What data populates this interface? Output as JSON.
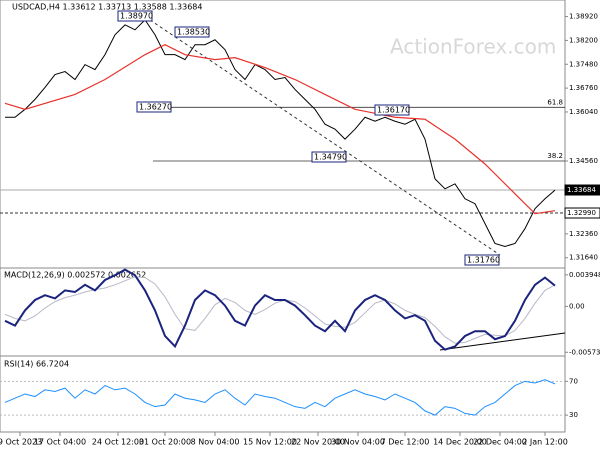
{
  "chart_data": {
    "type": "line",
    "title": "USDCAD,H4  1.33612 1.33713 1.33588 1.33684",
    "watermark": "ActionForex.com",
    "xlim": [
      -0.5,
      56
    ],
    "xticks": [
      {
        "value": 1.5,
        "label": "9 Oct 2023"
      },
      {
        "value": 5.5,
        "label": "17 Oct 04:00"
      },
      {
        "value": 11.3,
        "label": "24 Oct 12:00"
      },
      {
        "value": 16,
        "label": "31 Oct 20:00"
      },
      {
        "value": 21,
        "label": "8 Nov 04:00"
      },
      {
        "value": 26.5,
        "label": "15 Nov 12:00"
      },
      {
        "value": 31.3,
        "label": "22 Nov 20:00"
      },
      {
        "value": 35.3,
        "label": "30 Nov 04:00"
      },
      {
        "value": 40,
        "label": "7 Dec 12:00"
      },
      {
        "value": 45.5,
        "label": "14 Dec 20:00"
      },
      {
        "value": 49.5,
        "label": "22 Dec 04:00"
      },
      {
        "value": 54,
        "label": "2 Jan 12:00"
      }
    ],
    "ylim": [
      1.3133,
      1.3942
    ],
    "yticks": [
      {
        "value": 1.3892,
        "label": "1.38920"
      },
      {
        "value": 1.382,
        "label": "1.38200"
      },
      {
        "value": 1.3748,
        "label": "1.37480"
      },
      {
        "value": 1.3676,
        "label": "1.36760"
      },
      {
        "value": 1.3604,
        "label": "1.36040"
      },
      {
        "value": 1.3456,
        "label": "1.34560"
      },
      {
        "value": 1.3236,
        "label": "1.32360"
      },
      {
        "value": 1.3164,
        "label": "1.31640"
      }
    ],
    "series": [
      {
        "name": "USDCAD",
        "color": "#000000",
        "values": [
          1.3588,
          1.3588,
          1.3612,
          1.3642,
          1.3678,
          1.3717,
          1.3726,
          1.3702,
          1.3747,
          1.3732,
          1.3777,
          1.3837,
          1.3867,
          1.3852,
          1.3882,
          1.3837,
          1.3777,
          1.3777,
          1.3762,
          1.3807,
          1.3807,
          1.3822,
          1.3792,
          1.3732,
          1.3702,
          1.3747,
          1.3732,
          1.3702,
          1.3708,
          1.3672,
          1.3642,
          1.3612,
          1.3567,
          1.3552,
          1.3522,
          1.3552,
          1.3588,
          1.3576,
          1.3588,
          1.3576,
          1.3567,
          1.3582,
          1.3522,
          1.3402,
          1.3372,
          1.3387,
          1.3342,
          1.3327,
          1.3267,
          1.3207,
          1.3198,
          1.3207,
          1.3252,
          1.3312,
          1.3342,
          1.3368
        ]
      },
      {
        "name": "MA",
        "color": "#e8322c",
        "x": [
          0,
          2,
          7,
          10,
          14,
          16,
          18,
          21,
          23,
          26,
          29,
          32,
          35,
          39,
          42,
          45,
          48,
          51,
          53,
          55
        ],
        "values": [
          1.363,
          1.3612,
          1.3657,
          1.3702,
          1.3777,
          1.3807,
          1.3777,
          1.3762,
          1.3768,
          1.3738,
          1.3702,
          1.3657,
          1.3612,
          1.3588,
          1.3582,
          1.3522,
          1.3447,
          1.3357,
          1.3297,
          1.3306
        ]
      }
    ],
    "price_lines": [
      {
        "value": 1.33684,
        "label": "1.33684"
      },
      {
        "value": 1.3299,
        "label": "1.32990"
      }
    ],
    "fib_levels": [
      {
        "ratio": 61.8,
        "price": 1.3618
      },
      {
        "ratio": 38.2,
        "price": 1.3456
      }
    ],
    "annotations": [
      "1.38970",
      "1.38530",
      "1.36270",
      "1.34790",
      "1.36170",
      "1.31760"
    ],
    "macd": {
      "title": "MACD(12,26,9) 0.002572 0.002652",
      "ylim": [
        -0.0062,
        0.0048
      ],
      "yticks": [
        0.003948,
        {
          "value": 0,
          "label": "0.00"
        },
        -0.005733
      ],
      "series": [
        {
          "name": "MACD",
          "color": "#1a237e",
          "values": [
            -0.0018,
            -0.0024,
            -0.0005,
            0.0008,
            0.0014,
            0.001,
            0.002,
            0.0018,
            0.0027,
            0.002,
            0.0033,
            0.0039,
            0.0046,
            0.0039,
            0.002,
            -0.0005,
            -0.0037,
            -0.005,
            -0.0024,
            0.0008,
            0.002,
            0.0014,
            0.0001,
            -0.0018,
            -0.0024,
            0.0001,
            0.0014,
            0.0008,
            0.0008,
            0.0001,
            -0.0011,
            -0.0024,
            -0.0031,
            -0.0018,
            -0.0031,
            -0.0005,
            0.0008,
            0.0014,
            0.0008,
            -0.0005,
            -0.0015,
            -0.0011,
            -0.0018,
            -0.0043,
            -0.0054,
            -0.005,
            -0.0037,
            -0.0031,
            -0.0031,
            -0.0041,
            -0.0037,
            -0.0018,
            0.0008,
            0.0027,
            0.0036,
            0.0026
          ]
        },
        {
          "name": "Signal",
          "color": "#b8b8c8",
          "values": [
            -0.001,
            -0.0015,
            -0.0018,
            -0.0012,
            -0.0002,
            0.0006,
            0.0011,
            0.0014,
            0.0018,
            0.0021,
            0.0023,
            0.0027,
            0.0032,
            0.0037,
            0.0036,
            0.0028,
            0.0012,
            -0.001,
            -0.0028,
            -0.003,
            -0.0015,
            0.0002,
            0.001,
            0.0005,
            -0.0005,
            -0.001,
            -0.0004,
            0.0004,
            0.0008,
            0.0006,
            -0.0002,
            -0.0012,
            -0.0022,
            -0.0025,
            -0.0026,
            -0.002,
            -0.0008,
            0.0004,
            0.0008,
            0.0003,
            -0.0005,
            -0.001,
            -0.0014,
            -0.0025,
            -0.0038,
            -0.0046,
            -0.0045,
            -0.004,
            -0.0035,
            -0.0036,
            -0.0037,
            -0.003,
            -0.0015,
            0.0004,
            0.002,
            0.0027
          ]
        }
      ]
    },
    "rsi": {
      "title": "RSI(14) 66.7204",
      "ylim": [
        10,
        100
      ],
      "yticks": [
        70,
        30
      ],
      "series": [
        {
          "name": "RSI",
          "color": "#1e90ff",
          "values": [
            45,
            50,
            55,
            52,
            60,
            58,
            62,
            50,
            60,
            55,
            65,
            60,
            62,
            55,
            45,
            40,
            42,
            55,
            50,
            48,
            45,
            55,
            60,
            50,
            42,
            55,
            52,
            50,
            45,
            40,
            38,
            45,
            40,
            50,
            55,
            60,
            55,
            52,
            48,
            55,
            50,
            45,
            35,
            30,
            40,
            38,
            32,
            30,
            40,
            45,
            55,
            65,
            70,
            68,
            72,
            67
          ]
        }
      ]
    }
  }
}
